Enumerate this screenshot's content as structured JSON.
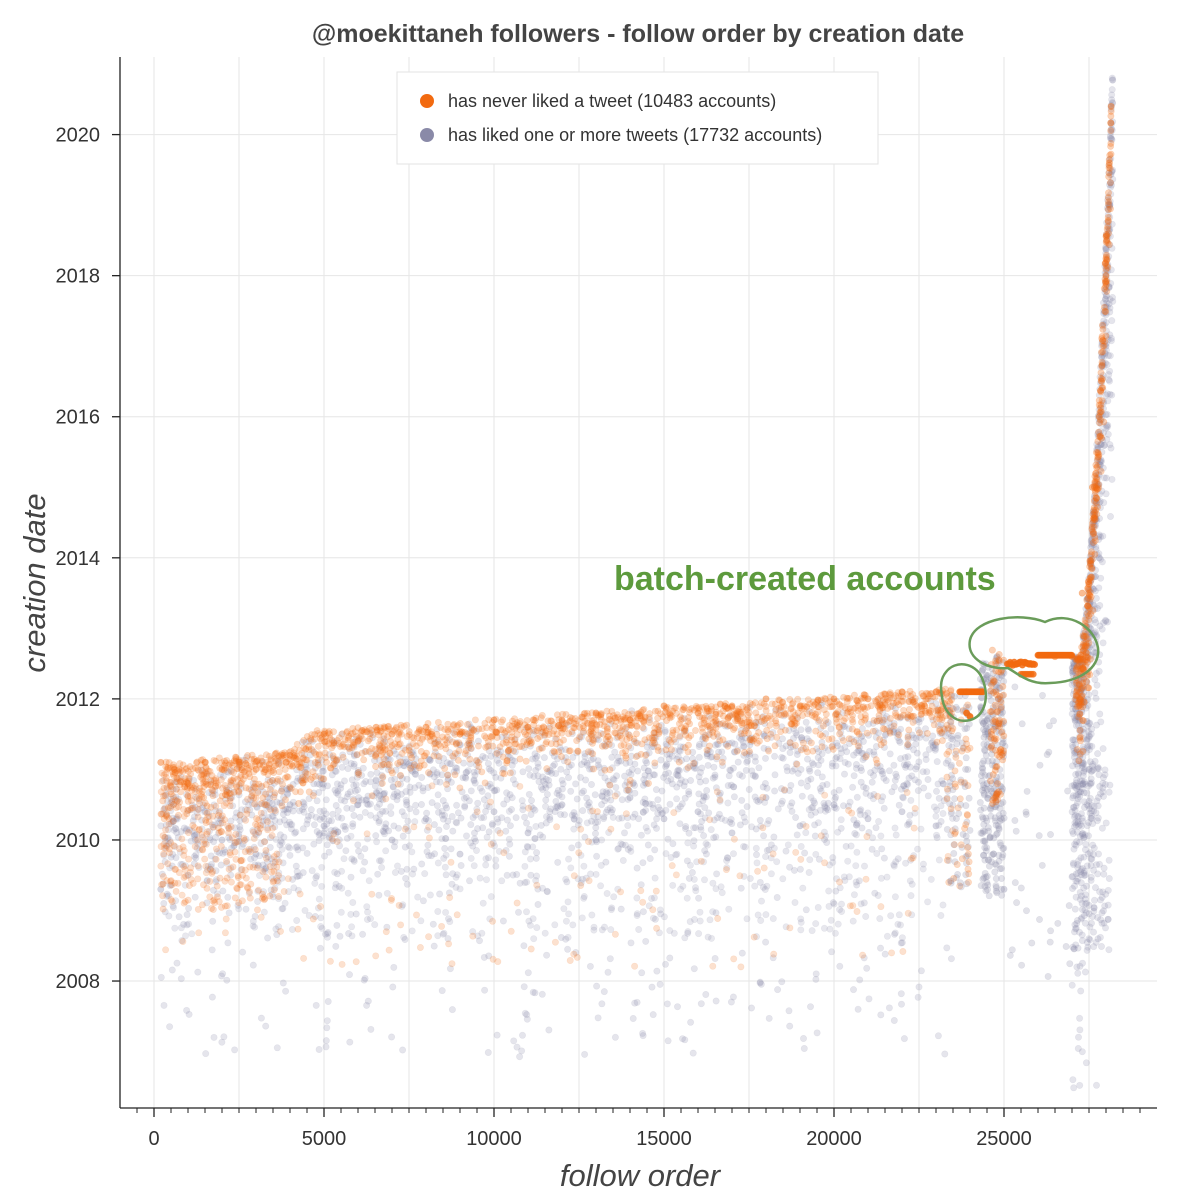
{
  "colors": {
    "never_liked": "#f26a10",
    "liked": "#8a8aa8",
    "annotation": "#5d9a3d"
  },
  "chart_data": {
    "type": "scatter",
    "title": "@moekittaneh followers - follow order by creation date",
    "xlabel": "follow order",
    "ylabel": "creation date",
    "xlim": [
      -1000,
      29500
    ],
    "ylim": [
      2006.2,
      2021.1
    ],
    "x_ticks": [
      0,
      5000,
      10000,
      15000,
      20000,
      25000
    ],
    "x_tick_labels": [
      "0",
      "5000",
      "10000",
      "15000",
      "20000",
      "25000"
    ],
    "y_ticks": [
      2008,
      2010,
      2012,
      2014,
      2016,
      2018,
      2020
    ],
    "y_tick_labels": [
      "2008",
      "2010",
      "2012",
      "2014",
      "2016",
      "2018",
      "2020"
    ],
    "grid": true,
    "legend_position": "top-center",
    "series": [
      {
        "name": "has never liked a tweet (10483 accounts)",
        "color": "#f26a10",
        "count": 10483,
        "points": [
          [
            200,
            2011.1
          ],
          [
            600,
            2011.0
          ],
          [
            1000,
            2010.8
          ],
          [
            1500,
            2011.1
          ],
          [
            2000,
            2011.0
          ],
          [
            2500,
            2011.1
          ],
          [
            3000,
            2011.0
          ],
          [
            4000,
            2011.2
          ],
          [
            5000,
            2011.5
          ],
          [
            6000,
            2011.4
          ],
          [
            7000,
            2011.5
          ],
          [
            8000,
            2011.6
          ],
          [
            9000,
            2011.5
          ],
          [
            10000,
            2011.7
          ],
          [
            11000,
            2011.6
          ],
          [
            12000,
            2011.7
          ],
          [
            13000,
            2011.8
          ],
          [
            14000,
            2011.7
          ],
          [
            15000,
            2011.9
          ],
          [
            16000,
            2011.8
          ],
          [
            17000,
            2011.9
          ],
          [
            18000,
            2012.0
          ],
          [
            19000,
            2011.9
          ],
          [
            20000,
            2012.0
          ],
          [
            21000,
            2012.0
          ],
          [
            22000,
            2012.1
          ],
          [
            23000,
            2012.1
          ],
          [
            23900,
            2012.1
          ],
          [
            24200,
            2012.1
          ],
          [
            25200,
            2012.5
          ],
          [
            25700,
            2012.5
          ],
          [
            26500,
            2012.6
          ],
          [
            27000,
            2012.6
          ],
          [
            27300,
            2013.5
          ],
          [
            27600,
            2015.0
          ],
          [
            27800,
            2016.0
          ],
          [
            28000,
            2018.0
          ],
          [
            28100,
            2019.6
          ],
          [
            28150,
            2020.4
          ]
        ]
      },
      {
        "name": "has liked one or more tweets (17732 accounts)",
        "color": "#8a8aa8",
        "count": 17732,
        "points": [
          [
            200,
            2009.3
          ],
          [
            1000,
            2009.5
          ],
          [
            2000,
            2010.0
          ],
          [
            3000,
            2009.8
          ],
          [
            4000,
            2010.5
          ],
          [
            5000,
            2010.2
          ],
          [
            6000,
            2010.5
          ],
          [
            7000,
            2010.0
          ],
          [
            8000,
            2010.3
          ],
          [
            9000,
            2009.8
          ],
          [
            10000,
            2010.4
          ],
          [
            11000,
            2010.1
          ],
          [
            12000,
            2010.5
          ],
          [
            13000,
            2010.0
          ],
          [
            14000,
            2010.6
          ],
          [
            15000,
            2010.3
          ],
          [
            16000,
            2010.4
          ],
          [
            17000,
            2010.1
          ],
          [
            18000,
            2010.6
          ],
          [
            19000,
            2010.2
          ],
          [
            20000,
            2010.5
          ],
          [
            21000,
            2010.3
          ],
          [
            22000,
            2010.4
          ],
          [
            23000,
            2010.2
          ],
          [
            24500,
            2010.8
          ],
          [
            25000,
            2009.3
          ],
          [
            27500,
            2011.0
          ],
          [
            27800,
            2014.0
          ],
          [
            28000,
            2017.0
          ],
          [
            28100,
            2019.0
          ]
        ]
      }
    ],
    "annotation": "batch-created accounts"
  }
}
